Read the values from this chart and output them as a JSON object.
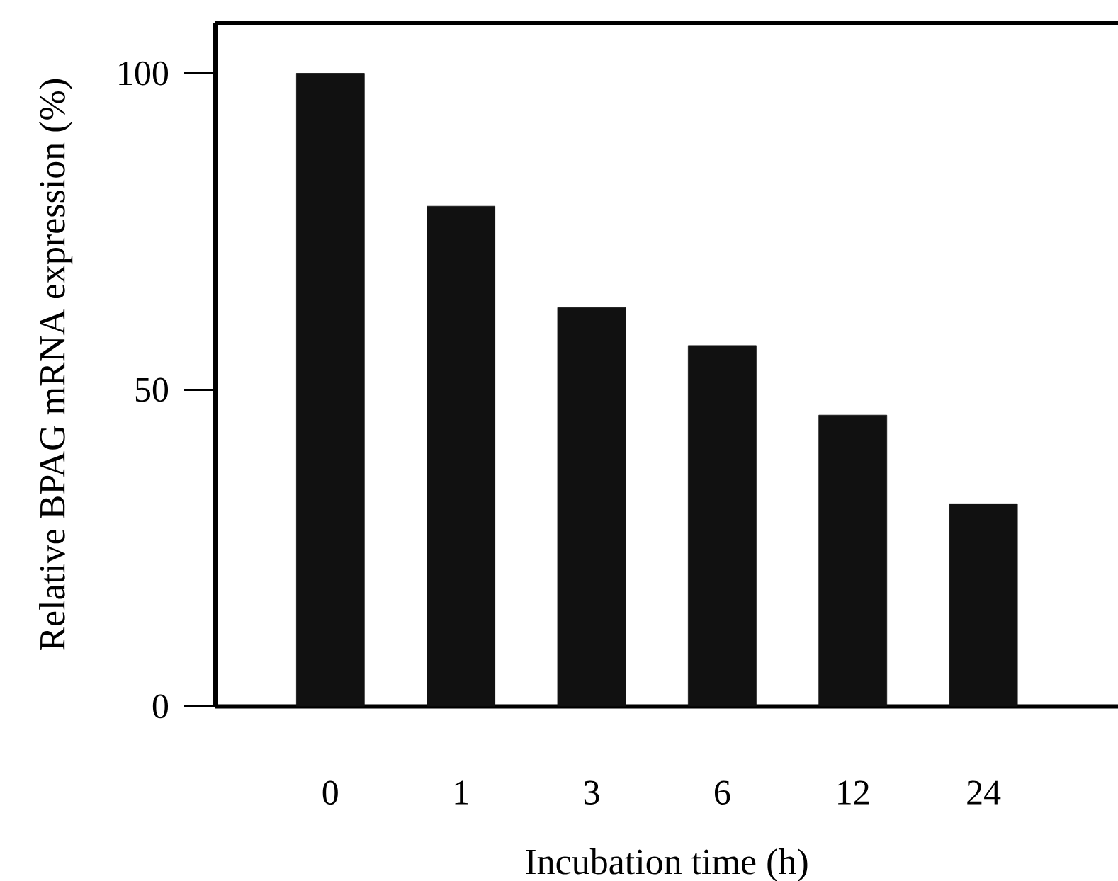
{
  "chart_data": {
    "type": "bar",
    "xlabel": "Incubation time (h)",
    "ylabel": "Relative BPAG mRNA expression (%)",
    "categories": [
      "0",
      "1",
      "3",
      "6",
      "12",
      "24"
    ],
    "values": [
      100,
      79,
      63,
      57,
      46,
      32
    ],
    "color": "#111111",
    "ylim": [
      0,
      108
    ],
    "yticks": [
      0,
      50,
      100
    ],
    "grid": false
  }
}
